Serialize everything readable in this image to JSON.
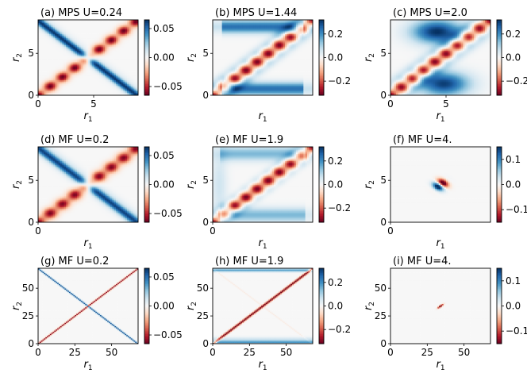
{
  "chart_data": [
    {
      "panel": "a",
      "type": "heatmap",
      "pattern": "mps_x",
      "title": "(a) MPS   U=0.24",
      "xlabel": "r1",
      "ylabel": "r2",
      "xlim": [
        0,
        9
      ],
      "ylim": [
        0,
        9
      ],
      "xticks": [
        "0",
        "5"
      ],
      "yticks": [
        "0",
        "5"
      ],
      "colorbar": {
        "vmin": -0.065,
        "vmax": 0.065,
        "ticks": [
          0.05,
          0.0,
          -0.05
        ],
        "tick_labels": [
          "0.05",
          "0.00",
          "−0.05"
        ]
      }
    },
    {
      "panel": "b",
      "type": "heatmap",
      "pattern": "mps_diag",
      "title": "(b) MPS   U=1.44",
      "xlabel": "r1",
      "ylabel": "r2",
      "xlim": [
        0,
        9
      ],
      "ylim": [
        0,
        9
      ],
      "xticks": [],
      "yticks": [
        "0",
        "5"
      ],
      "colorbar": {
        "vmin": -0.32,
        "vmax": 0.32,
        "ticks": [
          0.2,
          0.0,
          -0.2
        ],
        "tick_labels": [
          "0.2",
          "0.0",
          "−0.2"
        ]
      }
    },
    {
      "panel": "c",
      "type": "heatmap",
      "pattern": "mps_wave",
      "title": "(c) MPS   U=2.0",
      "xlabel": "r1",
      "ylabel": "r2",
      "xlim": [
        0,
        9
      ],
      "ylim": [
        0,
        9
      ],
      "xticks": [
        "0",
        "5"
      ],
      "yticks": [
        "0",
        "5"
      ],
      "colorbar": {
        "vmin": -0.32,
        "vmax": 0.32,
        "ticks": [
          0.2,
          0.0,
          -0.2
        ],
        "tick_labels": [
          "0.2",
          "0.0",
          "−0.2"
        ]
      }
    },
    {
      "panel": "d",
      "type": "heatmap",
      "pattern": "mf_x",
      "title": "(d) MF   U=0.2",
      "xlabel": "r1",
      "ylabel": "r2",
      "xlim": [
        0,
        9
      ],
      "ylim": [
        0,
        9
      ],
      "xticks": [
        "0"
      ],
      "yticks": [
        "0",
        "5"
      ],
      "colorbar": {
        "vmin": -0.065,
        "vmax": 0.065,
        "ticks": [
          0.05,
          0.0,
          -0.05
        ],
        "tick_labels": [
          "0.05",
          "0.00",
          "−0.05"
        ]
      }
    },
    {
      "panel": "e",
      "type": "heatmap",
      "pattern": "mf_diag",
      "title": "(e) MF   U=1.9",
      "xlabel": "r1",
      "ylabel": "r2",
      "xlim": [
        0,
        9
      ],
      "ylim": [
        0,
        9
      ],
      "xticks": [
        "0"
      ],
      "yticks": [
        "0",
        "5"
      ],
      "colorbar": {
        "vmin": -0.32,
        "vmax": 0.32,
        "ticks": [
          0.2,
          0.0,
          -0.2
        ],
        "tick_labels": [
          "0.2",
          "0.0",
          "−0.2"
        ]
      }
    },
    {
      "panel": "f",
      "type": "heatmap",
      "pattern": "mf_blob",
      "title": "(f) MF   U=4.",
      "xlabel": "r1",
      "ylabel": "r2",
      "xlim": [
        0,
        9
      ],
      "ylim": [
        0,
        9
      ],
      "xticks": [
        "0"
      ],
      "yticks": [
        "0",
        "5"
      ],
      "colorbar": {
        "vmin": -0.15,
        "vmax": 0.15,
        "ticks": [
          0.1,
          0.0,
          -0.1
        ],
        "tick_labels": [
          "0.1",
          "0.0",
          "−0.1"
        ]
      }
    },
    {
      "panel": "g",
      "type": "heatmap",
      "pattern": "mf_x_large",
      "title": "(g) MF   U=0.2",
      "xlabel": "r1",
      "ylabel": "r2",
      "xlim": [
        0,
        68
      ],
      "ylim": [
        0,
        68
      ],
      "xticks": [
        "0",
        "25",
        "50"
      ],
      "yticks": [
        "0",
        "25",
        "50"
      ],
      "colorbar": {
        "vmin": -0.065,
        "vmax": 0.065,
        "ticks": [
          0.05,
          0.0,
          -0.05
        ],
        "tick_labels": [
          "0.05",
          "0.00",
          "−0.05"
        ]
      }
    },
    {
      "panel": "h",
      "type": "heatmap",
      "pattern": "mf_diag_large",
      "title": "(h) MF   U=1.9",
      "xlabel": "r1",
      "ylabel": "r2",
      "xlim": [
        0,
        68
      ],
      "ylim": [
        0,
        68
      ],
      "xticks": [
        "0",
        "25",
        "50"
      ],
      "yticks": [
        "0",
        "25",
        "50"
      ],
      "colorbar": {
        "vmin": -0.32,
        "vmax": 0.32,
        "ticks": [
          0.2,
          0.0,
          -0.2
        ],
        "tick_labels": [
          "0.2",
          "0.0",
          "−0.2"
        ]
      }
    },
    {
      "panel": "i",
      "type": "heatmap",
      "pattern": "mf_blob_large",
      "title": "(i) MF   U=4.",
      "xlabel": "r1",
      "ylabel": "r2",
      "xlim": [
        0,
        68
      ],
      "ylim": [
        0,
        68
      ],
      "xticks": [
        "0",
        "25",
        "50"
      ],
      "yticks": [
        "0",
        "25",
        "50"
      ],
      "colorbar": {
        "vmin": -0.15,
        "vmax": 0.15,
        "ticks": [
          0.1,
          0.0,
          -0.1
        ],
        "tick_labels": [
          "0.1",
          "0.0",
          "−0.1"
        ]
      }
    }
  ]
}
